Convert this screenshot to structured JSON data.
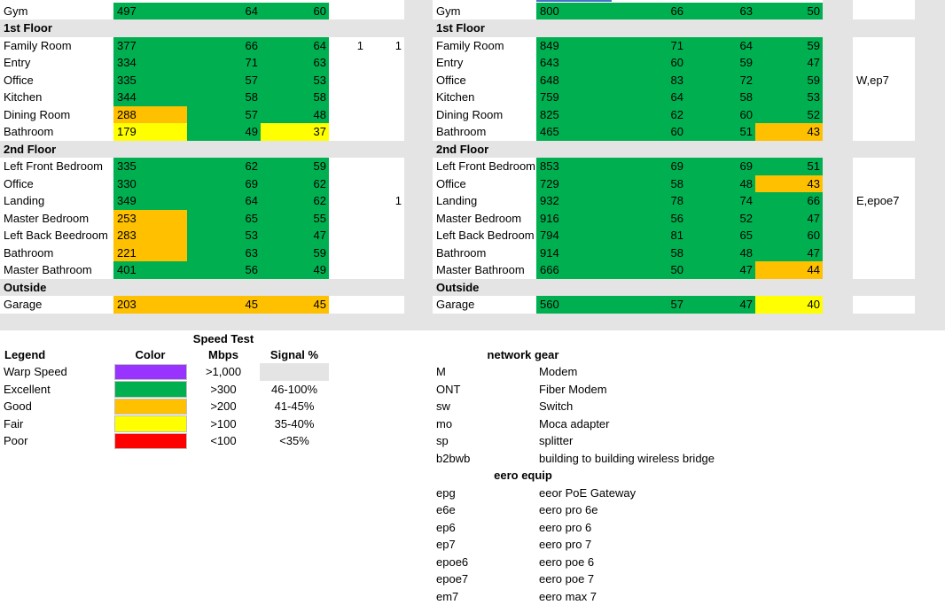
{
  "colors": {
    "purple": "#9933ff",
    "green": "#00b050",
    "orange": "#ffc000",
    "yellow": "#ffff00",
    "red": "#ff0000",
    "grey": "#e4e4e4"
  },
  "left_table": {
    "rows": [
      {
        "kind": "data",
        "label": "Gym",
        "speed": "497",
        "speed_color": "g",
        "a": "64",
        "a_color": "g",
        "b": "60",
        "b_color": "g",
        "extra1": "",
        "extra2": ""
      },
      {
        "kind": "header",
        "label": "1st Floor"
      },
      {
        "kind": "data",
        "label": "Family Room",
        "speed": "377",
        "speed_color": "g",
        "a": "66",
        "a_color": "g",
        "b": "64",
        "b_color": "g",
        "extra1": "1",
        "extra2": "1"
      },
      {
        "kind": "data",
        "label": "Entry",
        "speed": "334",
        "speed_color": "g",
        "a": "71",
        "a_color": "g",
        "b": "63",
        "b_color": "g",
        "extra1": "",
        "extra2": ""
      },
      {
        "kind": "data",
        "label": "Office",
        "speed": "335",
        "speed_color": "g",
        "a": "57",
        "a_color": "g",
        "b": "53",
        "b_color": "g",
        "extra1": "",
        "extra2": ""
      },
      {
        "kind": "data",
        "label": "Kitchen",
        "speed": "344",
        "speed_color": "g",
        "a": "58",
        "a_color": "g",
        "b": "58",
        "b_color": "g",
        "extra1": "",
        "extra2": ""
      },
      {
        "kind": "data",
        "label": "Dining Room",
        "speed": "288",
        "speed_color": "o",
        "a": "57",
        "a_color": "g",
        "b": "48",
        "b_color": "g",
        "extra1": "",
        "extra2": ""
      },
      {
        "kind": "data",
        "label": "Bathroom",
        "speed": "179",
        "speed_color": "y",
        "a": "49",
        "a_color": "g",
        "b": "37",
        "b_color": "y",
        "extra1": "",
        "extra2": ""
      },
      {
        "kind": "header",
        "label": "2nd Floor"
      },
      {
        "kind": "data",
        "label": "Left Front Bedroom",
        "speed": "335",
        "speed_color": "g",
        "a": "62",
        "a_color": "g",
        "b": "59",
        "b_color": "g",
        "extra1": "",
        "extra2": ""
      },
      {
        "kind": "data",
        "label": "Office",
        "speed": "330",
        "speed_color": "g",
        "a": "69",
        "a_color": "g",
        "b": "62",
        "b_color": "g",
        "extra1": "",
        "extra2": ""
      },
      {
        "kind": "data",
        "label": "Landing",
        "speed": "349",
        "speed_color": "g",
        "a": "64",
        "a_color": "g",
        "b": "62",
        "b_color": "g",
        "extra1": "",
        "extra2": "1"
      },
      {
        "kind": "data",
        "label": "Master Bedroom",
        "speed": "253",
        "speed_color": "o",
        "a": "65",
        "a_color": "g",
        "b": "55",
        "b_color": "g",
        "extra1": "",
        "extra2": ""
      },
      {
        "kind": "data",
        "label": "Left Back Beedroom",
        "speed": "283",
        "speed_color": "o",
        "a": "53",
        "a_color": "g",
        "b": "47",
        "b_color": "g",
        "extra1": "",
        "extra2": ""
      },
      {
        "kind": "data",
        "label": "Bathroom",
        "speed": "221",
        "speed_color": "o",
        "a": "63",
        "a_color": "g",
        "b": "59",
        "b_color": "g",
        "extra1": "",
        "extra2": ""
      },
      {
        "kind": "data",
        "label": "Master Bathroom",
        "speed": "401",
        "speed_color": "g",
        "a": "56",
        "a_color": "g",
        "b": "49",
        "b_color": "g",
        "extra1": "",
        "extra2": ""
      },
      {
        "kind": "header",
        "label": "Outside"
      },
      {
        "kind": "data",
        "label": "Garage",
        "speed": "203",
        "speed_color": "o",
        "a": "45",
        "a_color": "o",
        "b": "45",
        "b_color": "o",
        "extra1": "",
        "extra2": ""
      }
    ]
  },
  "right_table": {
    "rows": [
      {
        "kind": "data",
        "label": "Gym",
        "speed": "800",
        "speed_color": "g",
        "a": "66",
        "a_color": "g",
        "b": "63",
        "b_color": "g",
        "c": "50",
        "c_color": "g"
      },
      {
        "kind": "header",
        "label": "1st Floor"
      },
      {
        "kind": "data",
        "label": "Family Room",
        "speed": "849",
        "speed_color": "g",
        "a": "71",
        "a_color": "g",
        "b": "64",
        "b_color": "g",
        "c": "59",
        "c_color": "g"
      },
      {
        "kind": "data",
        "label": "Entry",
        "speed": "643",
        "speed_color": "g",
        "a": "60",
        "a_color": "g",
        "b": "59",
        "b_color": "g",
        "c": "47",
        "c_color": "g"
      },
      {
        "kind": "data",
        "label": "Office",
        "speed": "648",
        "speed_color": "g",
        "a": "83",
        "a_color": "g",
        "b": "72",
        "b_color": "g",
        "c": "59",
        "c_color": "g"
      },
      {
        "kind": "data",
        "label": "Kitchen",
        "speed": "759",
        "speed_color": "g",
        "a": "64",
        "a_color": "g",
        "b": "58",
        "b_color": "g",
        "c": "53",
        "c_color": "g"
      },
      {
        "kind": "data",
        "label": "Dining Room",
        "speed": "825",
        "speed_color": "g",
        "a": "62",
        "a_color": "g",
        "b": "60",
        "b_color": "g",
        "c": "52",
        "c_color": "g"
      },
      {
        "kind": "data",
        "label": "Bathroom",
        "speed": "465",
        "speed_color": "g",
        "a": "60",
        "a_color": "g",
        "b": "51",
        "b_color": "g",
        "c": "43",
        "c_color": "o"
      },
      {
        "kind": "header",
        "label": "2nd Floor"
      },
      {
        "kind": "data",
        "label": "Left Front Bedroom",
        "speed": "853",
        "speed_color": "g",
        "a": "69",
        "a_color": "g",
        "b": "69",
        "b_color": "g",
        "c": "51",
        "c_color": "g"
      },
      {
        "kind": "data",
        "label": "Office",
        "speed": "729",
        "speed_color": "g",
        "a": "58",
        "a_color": "g",
        "b": "48",
        "b_color": "g",
        "c": "43",
        "c_color": "o"
      },
      {
        "kind": "data",
        "label": "Landing",
        "speed": "932",
        "speed_color": "g",
        "a": "78",
        "a_color": "g",
        "b": "74",
        "b_color": "g",
        "c": "66",
        "c_color": "g"
      },
      {
        "kind": "data",
        "label": "Master Bedroom",
        "speed": "916",
        "speed_color": "g",
        "a": "56",
        "a_color": "g",
        "b": "52",
        "b_color": "g",
        "c": "47",
        "c_color": "g"
      },
      {
        "kind": "data",
        "label": "Left Back Bedroom",
        "speed": "794",
        "speed_color": "g",
        "a": "81",
        "a_color": "g",
        "b": "65",
        "b_color": "g",
        "c": "60",
        "c_color": "g"
      },
      {
        "kind": "data",
        "label": "Bathroom",
        "speed": "914",
        "speed_color": "g",
        "a": "58",
        "a_color": "g",
        "b": "48",
        "b_color": "g",
        "c": "47",
        "c_color": "g"
      },
      {
        "kind": "data",
        "label": "Master Bathroom",
        "speed": "666",
        "speed_color": "g",
        "a": "50",
        "a_color": "g",
        "b": "47",
        "b_color": "g",
        "c": "44",
        "c_color": "o"
      },
      {
        "kind": "header",
        "label": "Outside"
      },
      {
        "kind": "data",
        "label": "Garage",
        "speed": "560",
        "speed_color": "g",
        "a": "57",
        "a_color": "g",
        "b": "47",
        "b_color": "g",
        "c": "40",
        "c_color": "y"
      }
    ],
    "notes": [
      "W,ep7",
      "E,epoe7"
    ]
  },
  "legend": {
    "title": "Legend",
    "color_header": "Color",
    "speed_header_line1": "Speed Test",
    "speed_header_line2": "Mbps",
    "signal_header": "Signal %",
    "rows": [
      {
        "label": "Warp Speed",
        "color": "p",
        "speed": ">1,000",
        "signal": ""
      },
      {
        "label": "Excellent",
        "color": "g",
        "speed": ">300",
        "signal": "46-100%"
      },
      {
        "label": "Good",
        "color": "o",
        "speed": ">200",
        "signal": "41-45%"
      },
      {
        "label": "Fair",
        "color": "y",
        "speed": ">100",
        "signal": "35-40%"
      },
      {
        "label": "Poor",
        "color": "r",
        "speed": "<100",
        "signal": "<35%"
      }
    ]
  },
  "network_gear": {
    "title": "network gear",
    "items": [
      {
        "abbr": "M",
        "desc": "Modem"
      },
      {
        "abbr": "ONT",
        "desc": "Fiber Modem"
      },
      {
        "abbr": "sw",
        "desc": "Switch"
      },
      {
        "abbr": "mo",
        "desc": "Moca adapter"
      },
      {
        "abbr": "sp",
        "desc": "splitter"
      },
      {
        "abbr": "b2bwb",
        "desc": "building to building wireless bridge"
      }
    ]
  },
  "eero_equip": {
    "title": "eero equip",
    "items": [
      {
        "abbr": "epg",
        "desc": "eeor PoE Gateway"
      },
      {
        "abbr": "e6e",
        "desc": "eero pro 6e"
      },
      {
        "abbr": "ep6",
        "desc": "eero pro 6"
      },
      {
        "abbr": "ep7",
        "desc": "eero pro 7"
      },
      {
        "abbr": "epoe6",
        "desc": "eero poe 6"
      },
      {
        "abbr": "epoe7",
        "desc": "eero poe 7"
      },
      {
        "abbr": "em7",
        "desc": "eero max 7"
      }
    ]
  }
}
